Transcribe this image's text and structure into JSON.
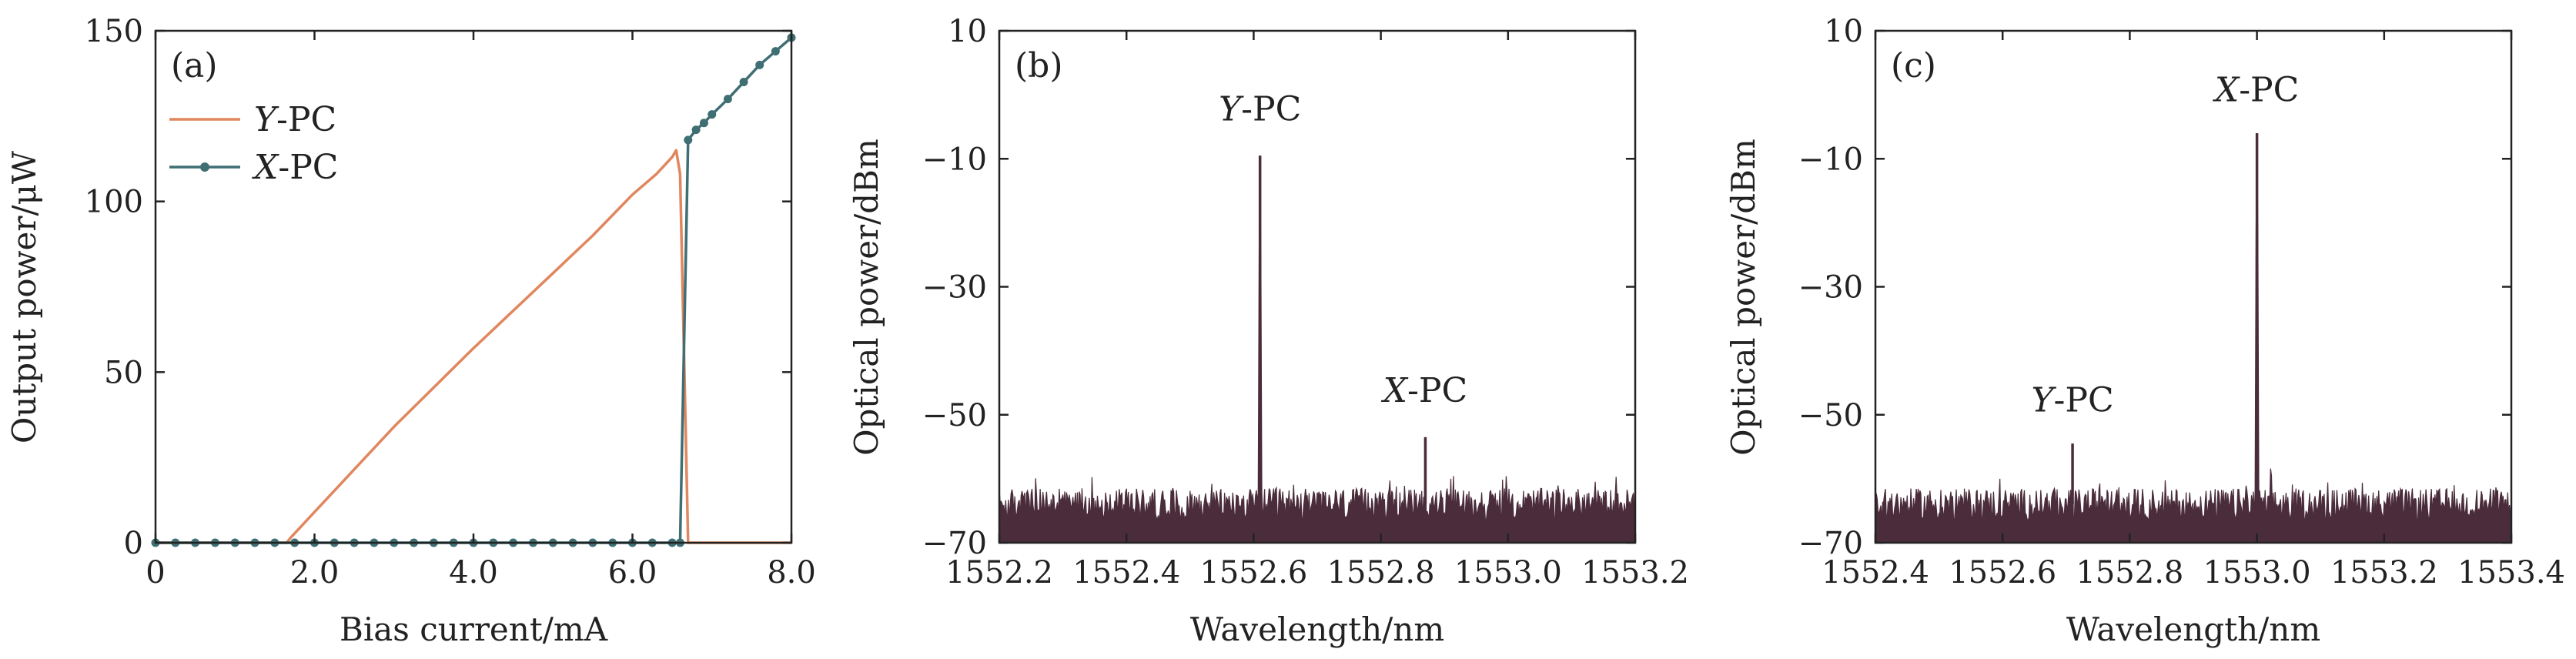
{
  "chart_data": [
    {
      "type": "line",
      "panel": "(a)",
      "xlabel": "Bias current/mA",
      "ylabel": "Output power/μW",
      "xlim": [
        0,
        8
      ],
      "ylim": [
        0,
        150
      ],
      "xticks": [
        0,
        2,
        4,
        6,
        8
      ],
      "xtick_labels": [
        "0",
        "2.0",
        "4.0",
        "6.0",
        "8.0"
      ],
      "yticks": [
        0,
        50,
        100,
        150
      ],
      "ytick_labels": [
        "0",
        "50",
        "100",
        "150"
      ],
      "grid": false,
      "legend_position": "top-left",
      "colors": {
        "Y-PC": "#e0875f",
        "X-PC": "#3f6e73"
      },
      "series": [
        {
          "name": "Y-PC",
          "name_italic": "Y",
          "name_rest": "-PC",
          "marker": "none",
          "x": [
            0,
            1.65,
            1.7,
            2.0,
            3.0,
            4.0,
            5.0,
            5.5,
            6.0,
            6.3,
            6.5,
            6.55,
            6.6,
            6.7,
            8.0
          ],
          "y": [
            0,
            0,
            1.5,
            9,
            34,
            57,
            79,
            90,
            102,
            108,
            113,
            115,
            108,
            0,
            0
          ]
        },
        {
          "name": "X-PC",
          "name_italic": "X",
          "name_rest": "-PC",
          "marker": "circle",
          "x": [
            0,
            0.25,
            0.5,
            0.75,
            1.0,
            1.25,
            1.5,
            1.75,
            2.0,
            2.25,
            2.5,
            2.75,
            3.0,
            3.25,
            3.5,
            3.75,
            4.0,
            4.25,
            4.5,
            4.75,
            5.0,
            5.25,
            5.5,
            5.75,
            6.0,
            6.25,
            6.5,
            6.6,
            6.7,
            6.8,
            6.9,
            7.0,
            7.2,
            7.4,
            7.6,
            7.8,
            8.0
          ],
          "y": [
            0,
            0,
            0,
            0,
            0,
            0,
            0,
            0,
            0,
            0,
            0,
            0,
            0,
            0,
            0,
            0,
            0,
            0,
            0,
            0,
            0,
            0,
            0,
            0,
            0,
            0,
            0,
            0,
            118,
            121,
            123,
            125.5,
            130,
            135,
            140,
            144,
            148
          ]
        }
      ]
    },
    {
      "type": "area",
      "panel": "(b)",
      "xlabel": "Wavelength/nm",
      "ylabel": "Optical power/dBm",
      "xlim": [
        1552.2,
        1553.2
      ],
      "ylim": [
        -70,
        10
      ],
      "xticks": [
        1552.2,
        1552.4,
        1552.6,
        1552.8,
        1553.0,
        1553.2
      ],
      "xtick_labels": [
        "1552.2",
        "1552.4",
        "1552.6",
        "1552.8",
        "1553.0",
        "1553.2"
      ],
      "yticks": [
        -70,
        -50,
        -30,
        -10,
        10
      ],
      "ytick_labels": [
        "−70",
        "−50",
        "−30",
        "−10",
        "10"
      ],
      "grid": false,
      "color": "#4a2c3a",
      "noise_floor_dBm": -64,
      "peaks": [
        {
          "x": 1552.61,
          "y": -9.5
        },
        {
          "x": 1552.87,
          "y": -53.5
        }
      ],
      "annotations": [
        {
          "italic": "Y",
          "rest": "-PC",
          "x": 1552.61,
          "y": -4
        },
        {
          "italic": "X",
          "rest": "-PC",
          "x": 1552.87,
          "y": -48
        }
      ]
    },
    {
      "type": "area",
      "panel": "(c)",
      "xlabel": "Wavelength/nm",
      "ylabel": "Optical power/dBm",
      "xlim": [
        1552.4,
        1553.4
      ],
      "ylim": [
        -70,
        10
      ],
      "xticks": [
        1552.4,
        1552.6,
        1552.8,
        1553.0,
        1553.2,
        1553.4
      ],
      "xtick_labels": [
        "1552.4",
        "1552.6",
        "1552.8",
        "1553.0",
        "1553.2",
        "1553.4"
      ],
      "yticks": [
        -70,
        -50,
        -30,
        -10,
        10
      ],
      "ytick_labels": [
        "−70",
        "−50",
        "−30",
        "−10",
        "10"
      ],
      "grid": false,
      "color": "#4a2c3a",
      "noise_floor_dBm": -64,
      "peaks": [
        {
          "x": 1552.71,
          "y": -54.5
        },
        {
          "x": 1553.0,
          "y": -6
        }
      ],
      "annotations": [
        {
          "italic": "Y",
          "rest": "-PC",
          "x": 1552.71,
          "y": -49.5
        },
        {
          "italic": "X",
          "rest": "-PC",
          "x": 1553.0,
          "y": -1
        }
      ]
    }
  ]
}
